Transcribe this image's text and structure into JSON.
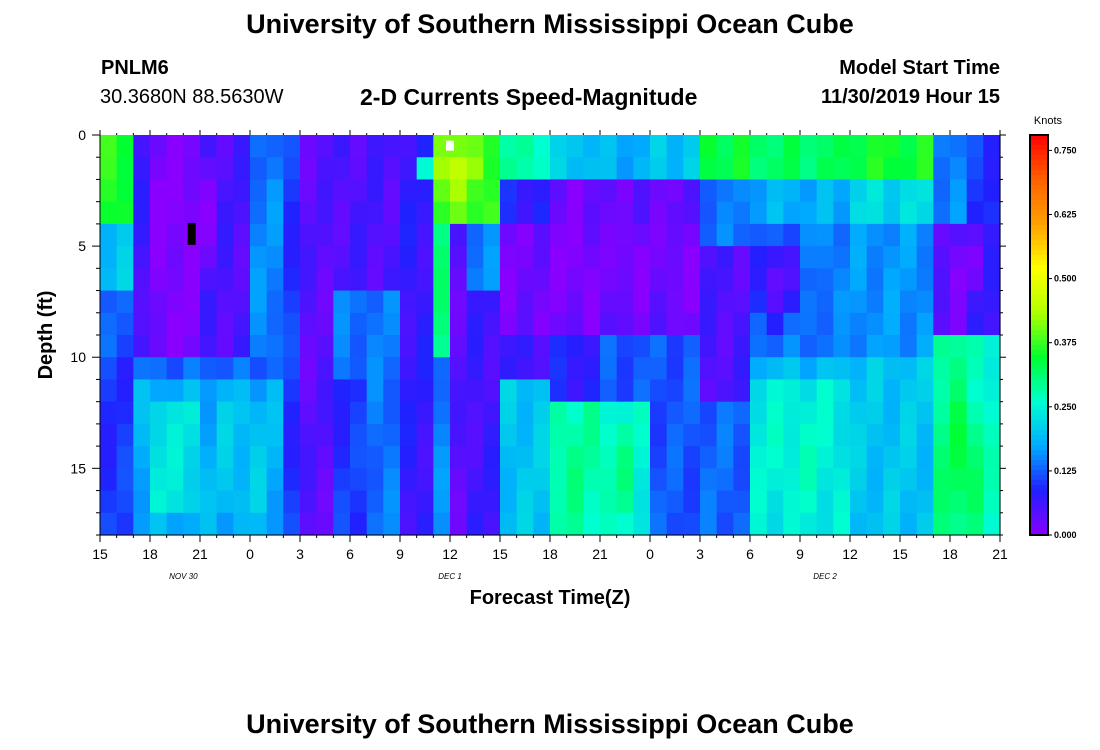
{
  "header": {
    "title": "University of Southern Mississippi Ocean Cube",
    "station_id": "PNLM6",
    "station_coords": "30.3680N 88.5630W",
    "chart_title": "2-D Currents Speed-Magnitude",
    "model_start_label": "Model Start Time",
    "model_start_value": "11/30/2019 Hour 15"
  },
  "footer": {
    "title": "University of Southern Mississippi Ocean Cube"
  },
  "chart_data": {
    "type": "heatmap",
    "title": "2-D Currents Speed-Magnitude",
    "xlabel": "Forecast Time(Z)",
    "ylabel": "Depth (ft)",
    "x_tick_labels": [
      "15",
      "18",
      "21",
      "0",
      "3",
      "6",
      "9",
      "12",
      "15",
      "18",
      "21",
      "0",
      "3",
      "6",
      "9",
      "12",
      "15",
      "18",
      "21"
    ],
    "x_range_hours": [
      0,
      54
    ],
    "day_labels": [
      {
        "text": "NOV  30",
        "hour": 5
      },
      {
        "text": "DEC  1",
        "hour": 21
      },
      {
        "text": "DEC  2",
        "hour": 43.5
      }
    ],
    "y_ticks": [
      0,
      5,
      10,
      15
    ],
    "y_range_ft": [
      0,
      18
    ],
    "y_inverted": true,
    "colorbar": {
      "unit": "Knots",
      "tick_labels": [
        "0.750",
        "0.625",
        "0.500",
        "0.375",
        "0.250",
        "0.125",
        "0.000"
      ],
      "tick_values": [
        0.75,
        0.625,
        0.5,
        0.375,
        0.25,
        0.125,
        0.0
      ],
      "range": [
        0,
        0.78
      ],
      "colors": [
        "#8a00ff",
        "#2020ff",
        "#00aaff",
        "#00ffd0",
        "#00ff30",
        "#b0ff00",
        "#ffff00",
        "#ffa000",
        "#ff6000",
        "#ff0000"
      ]
    },
    "regions": [
      {
        "t0": 0,
        "t1": 2,
        "d0": 0,
        "d1": 4,
        "value": 0.36
      },
      {
        "t0": 0,
        "t1": 2,
        "d0": 4,
        "d1": 7,
        "value": 0.2
      },
      {
        "t0": 0,
        "t1": 2,
        "d0": 7,
        "d1": 10,
        "value": 0.12
      },
      {
        "t0": 0,
        "t1": 2,
        "d0": 10,
        "d1": 18,
        "value": 0.1
      },
      {
        "t0": 2,
        "t1": 6,
        "d0": 0,
        "d1": 10,
        "value": 0.01
      },
      {
        "t0": 2,
        "t1": 3,
        "d0": 0,
        "d1": 10,
        "value": 0.06
      },
      {
        "t0": 6,
        "t1": 9,
        "d0": 0,
        "d1": 10,
        "value": 0.05
      },
      {
        "t0": 2,
        "t1": 11,
        "d0": 10,
        "d1": 11.5,
        "value": 0.13
      },
      {
        "t0": 2,
        "t1": 11,
        "d0": 11.5,
        "d1": 18,
        "value": 0.18
      },
      {
        "t0": 3,
        "t1": 6,
        "d0": 12,
        "d1": 17,
        "value": 0.23
      },
      {
        "t0": 7,
        "t1": 10,
        "d0": 12,
        "d1": 17,
        "value": 0.2
      },
      {
        "t0": 9,
        "t1": 13,
        "d0": 0,
        "d1": 2,
        "value": 0.14
      },
      {
        "t0": 11,
        "t1": 12,
        "d0": 0,
        "d1": 18,
        "value": 0.1
      },
      {
        "t0": 12,
        "t1": 14,
        "d0": 0,
        "d1": 18,
        "value": 0.04
      },
      {
        "t0": 14,
        "t1": 18,
        "d0": 0,
        "d1": 7,
        "value": 0.05
      },
      {
        "t0": 14,
        "t1": 18,
        "d0": 7,
        "d1": 11,
        "value": 0.14
      },
      {
        "t0": 14,
        "t1": 16,
        "d0": 11,
        "d1": 18,
        "value": 0.1
      },
      {
        "t0": 16,
        "t1": 18,
        "d0": 11,
        "d1": 18,
        "value": 0.14
      },
      {
        "t0": 18,
        "t1": 20,
        "d0": 0,
        "d1": 18,
        "value": 0.07
      },
      {
        "t0": 20,
        "t1": 24,
        "d0": 0,
        "d1": 4,
        "value": 0.38
      },
      {
        "t0": 20,
        "t1": 21,
        "d0": 4,
        "d1": 10,
        "value": 0.3
      },
      {
        "t0": 21,
        "t1": 22,
        "d0": 4,
        "d1": 18,
        "value": 0.04
      },
      {
        "t0": 22,
        "t1": 24,
        "d0": 4,
        "d1": 7,
        "value": 0.15
      },
      {
        "t0": 22,
        "t1": 24,
        "d0": 7,
        "d1": 18,
        "value": 0.06
      },
      {
        "t0": 24,
        "t1": 27,
        "d0": 0,
        "d1": 2,
        "value": 0.28
      },
      {
        "t0": 24,
        "t1": 27,
        "d0": 2,
        "d1": 4,
        "value": 0.08
      },
      {
        "t0": 24,
        "t1": 27,
        "d0": 4,
        "d1": 9,
        "value": 0.02
      },
      {
        "t0": 24,
        "t1": 27,
        "d0": 9,
        "d1": 11,
        "value": 0.06
      },
      {
        "t0": 24,
        "t1": 27,
        "d0": 11,
        "d1": 18,
        "value": 0.2
      },
      {
        "t0": 27,
        "t1": 30,
        "d0": 0,
        "d1": 2,
        "value": 0.2
      },
      {
        "t0": 27,
        "t1": 30,
        "d0": 2,
        "d1": 9,
        "value": 0.02
      },
      {
        "t0": 27,
        "t1": 30,
        "d0": 9,
        "d1": 12,
        "value": 0.08
      },
      {
        "t0": 27,
        "t1": 30,
        "d0": 12,
        "d1": 18,
        "value": 0.28
      },
      {
        "t0": 30,
        "t1": 33,
        "d0": 0,
        "d1": 2,
        "value": 0.18
      },
      {
        "t0": 30,
        "t1": 33,
        "d0": 2,
        "d1": 9,
        "value": 0.03
      },
      {
        "t0": 30,
        "t1": 33,
        "d0": 9,
        "d1": 12,
        "value": 0.12
      },
      {
        "t0": 30,
        "t1": 33,
        "d0": 12,
        "d1": 18,
        "value": 0.25
      },
      {
        "t0": 33,
        "t1": 36,
        "d0": 0,
        "d1": 2,
        "value": 0.2
      },
      {
        "t0": 33,
        "t1": 36,
        "d0": 2,
        "d1": 9,
        "value": 0.03
      },
      {
        "t0": 33,
        "t1": 36,
        "d0": 9,
        "d1": 18,
        "value": 0.12
      },
      {
        "t0": 36,
        "t1": 39,
        "d0": 0,
        "d1": 2,
        "value": 0.34
      },
      {
        "t0": 36,
        "t1": 39,
        "d0": 2,
        "d1": 5,
        "value": 0.14
      },
      {
        "t0": 36,
        "t1": 39,
        "d0": 5,
        "d1": 12,
        "value": 0.05
      },
      {
        "t0": 36,
        "t1": 39,
        "d0": 12,
        "d1": 18,
        "value": 0.13
      },
      {
        "t0": 39,
        "t1": 45,
        "d0": 0,
        "d1": 2,
        "value": 0.32
      },
      {
        "t0": 39,
        "t1": 45,
        "d0": 2,
        "d1": 4,
        "value": 0.18
      },
      {
        "t0": 39,
        "t1": 45,
        "d0": 4,
        "d1": 8,
        "value": 0.15
      },
      {
        "t0": 39,
        "t1": 45,
        "d0": 8,
        "d1": 10,
        "value": 0.14
      },
      {
        "t0": 39,
        "t1": 45,
        "d0": 10,
        "d1": 11,
        "value": 0.19
      },
      {
        "t0": 39,
        "t1": 45,
        "d0": 11,
        "d1": 18,
        "value": 0.24
      },
      {
        "t0": 45,
        "t1": 50,
        "d0": 0,
        "d1": 2,
        "value": 0.35
      },
      {
        "t0": 45,
        "t1": 50,
        "d0": 2,
        "d1": 4,
        "value": 0.22
      },
      {
        "t0": 45,
        "t1": 50,
        "d0": 4,
        "d1": 10,
        "value": 0.16
      },
      {
        "t0": 45,
        "t1": 50,
        "d0": 10,
        "d1": 18,
        "value": 0.2
      },
      {
        "t0": 50,
        "t1": 52,
        "d0": 0,
        "d1": 4,
        "value": 0.15
      },
      {
        "t0": 50,
        "t1": 52,
        "d0": 4,
        "d1": 9,
        "value": 0.03
      },
      {
        "t0": 50,
        "t1": 52,
        "d0": 9,
        "d1": 18,
        "value": 0.3
      },
      {
        "t0": 52,
        "t1": 54,
        "d0": 0,
        "d1": 4,
        "value": 0.1
      },
      {
        "t0": 52,
        "t1": 54,
        "d0": 4,
        "d1": 9,
        "value": 0.06
      },
      {
        "t0": 52,
        "t1": 54,
        "d0": 9,
        "d1": 18,
        "value": 0.26
      }
    ],
    "blobs": [
      {
        "t": 5,
        "d": 4,
        "rt": 2.5,
        "rd": 4,
        "value": 0.0
      },
      {
        "t": 40.5,
        "d": 6.5,
        "rt": 2.5,
        "rd": 2.5,
        "value": 0.04
      },
      {
        "t": 32,
        "d": 6,
        "rt": 1.5,
        "rd": 2.5,
        "value": 0.0
      },
      {
        "t": 28.5,
        "d": 6,
        "rt": 1.5,
        "rd": 2.5,
        "value": 0.0
      },
      {
        "t": 35,
        "d": 6,
        "rt": 1.2,
        "rd": 2.5,
        "value": 0.0
      },
      {
        "t": 52,
        "d": 6,
        "rt": 0.8,
        "rd": 2,
        "value": 0.0
      },
      {
        "t": 42,
        "d": 14.5,
        "rt": 2.5,
        "rd": 3,
        "value": 0.26
      },
      {
        "t": 31,
        "d": 15,
        "rt": 1.2,
        "rd": 3,
        "value": 0.3
      },
      {
        "t": 28,
        "d": 15,
        "rt": 1,
        "rd": 2.5,
        "value": 0.3
      },
      {
        "t": 52,
        "d": 15,
        "rt": 1.5,
        "rd": 3.5,
        "value": 0.34
      },
      {
        "t": 3.5,
        "d": 14.5,
        "rt": 1,
        "rd": 3,
        "value": 0.24
      },
      {
        "t": 21,
        "d": 1.5,
        "rt": 2,
        "rd": 1.5,
        "value": 0.45
      }
    ],
    "markers": [
      {
        "t": 5.5,
        "d": 4,
        "color": "#000000"
      },
      {
        "t": 21,
        "d": 0.3,
        "color": "#ffffff"
      }
    ]
  }
}
